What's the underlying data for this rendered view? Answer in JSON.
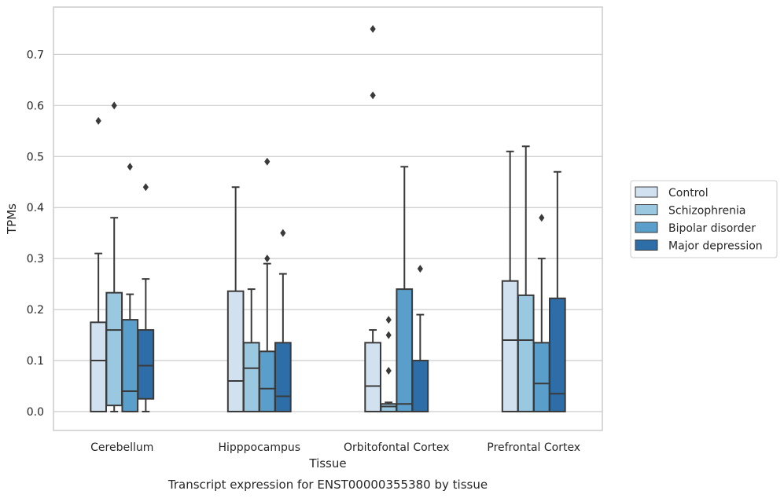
{
  "chart_data": {
    "type": "box",
    "caption": "Transcript expression for ENST00000355380 by tissue",
    "xlabel": "Tissue",
    "ylabel": "TPMs",
    "ylim": [
      -0.037,
      0.793
    ],
    "yticks": [
      "0.0",
      "0.1",
      "0.2",
      "0.3",
      "0.4",
      "0.5",
      "0.6",
      "0.7"
    ],
    "categories": [
      "Cerebellum",
      "Hipppocampus",
      "Orbitofontal Cortex",
      "Prefrontal Cortex"
    ],
    "grid": true,
    "legend_position": "right",
    "series": [
      {
        "name": "Control",
        "color": "#d1e1f0",
        "boxes": [
          {
            "min": 0.0,
            "q1": 0.0,
            "median": 0.1,
            "q3": 0.175,
            "max": 0.31,
            "outliers": [
              0.57
            ]
          },
          {
            "min": 0.0,
            "q1": 0.0,
            "median": 0.06,
            "q3": 0.236,
            "max": 0.44,
            "outliers": []
          },
          {
            "min": 0.0,
            "q1": 0.0,
            "median": 0.05,
            "q3": 0.135,
            "max": 0.16,
            "outliers": [
              0.62,
              0.75
            ]
          },
          {
            "min": 0.0,
            "q1": 0.0,
            "median": 0.14,
            "q3": 0.256,
            "max": 0.51,
            "outliers": []
          }
        ]
      },
      {
        "name": "Schizophrenia",
        "color": "#9ac8e0",
        "boxes": [
          {
            "min": 0.0,
            "q1": 0.012,
            "median": 0.16,
            "q3": 0.233,
            "max": 0.38,
            "outliers": [
              0.6
            ]
          },
          {
            "min": 0.0,
            "q1": 0.0,
            "median": 0.085,
            "q3": 0.135,
            "max": 0.24,
            "outliers": []
          },
          {
            "min": 0.0,
            "q1": 0.0,
            "median": 0.01,
            "q3": 0.015,
            "max": 0.018,
            "outliers": [
              0.08,
              0.15,
              0.18
            ]
          },
          {
            "min": 0.0,
            "q1": 0.0,
            "median": 0.14,
            "q3": 0.228,
            "max": 0.52,
            "outliers": []
          }
        ]
      },
      {
        "name": "Bipolar disorder",
        "color": "#5a9ecb",
        "boxes": [
          {
            "min": 0.0,
            "q1": 0.0,
            "median": 0.04,
            "q3": 0.18,
            "max": 0.23,
            "outliers": [
              0.48
            ]
          },
          {
            "min": 0.0,
            "q1": 0.0,
            "median": 0.045,
            "q3": 0.118,
            "max": 0.29,
            "outliers": [
              0.3,
              0.49
            ]
          },
          {
            "min": 0.0,
            "q1": 0.0,
            "median": 0.015,
            "q3": 0.24,
            "max": 0.48,
            "outliers": []
          },
          {
            "min": 0.0,
            "q1": 0.0,
            "median": 0.055,
            "q3": 0.135,
            "max": 0.3,
            "outliers": [
              0.38
            ]
          }
        ]
      },
      {
        "name": "Major depression",
        "color": "#2d6ea9",
        "boxes": [
          {
            "min": 0.0,
            "q1": 0.025,
            "median": 0.09,
            "q3": 0.16,
            "max": 0.26,
            "outliers": [
              0.44
            ]
          },
          {
            "min": 0.0,
            "q1": 0.0,
            "median": 0.03,
            "q3": 0.135,
            "max": 0.27,
            "outliers": [
              0.35
            ]
          },
          {
            "min": 0.0,
            "q1": 0.0,
            "median": 0.0,
            "q3": 0.1,
            "max": 0.19,
            "outliers": [
              0.28
            ]
          },
          {
            "min": 0.0,
            "q1": 0.0,
            "median": 0.035,
            "q3": 0.222,
            "max": 0.47,
            "outliers": []
          }
        ]
      }
    ]
  }
}
